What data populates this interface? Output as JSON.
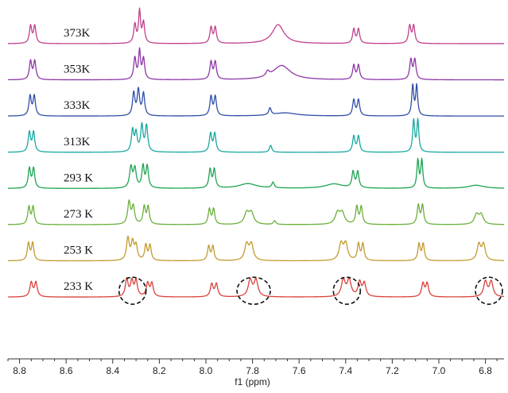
{
  "chart_data": {
    "type": "line",
    "xlabel": "f1 (ppm)",
    "x_axis_reversed": true,
    "xlim": [
      8.85,
      6.72
    ],
    "x_ticks": [
      8.8,
      8.6,
      8.4,
      8.2,
      8.0,
      7.8,
      7.6,
      7.4,
      7.2,
      7.0,
      6.8
    ],
    "x_tick_labels": [
      "8.8",
      "8.6",
      "8.4",
      "8.2",
      "8.0",
      "7.8",
      "7.6",
      "7.4",
      "7.2",
      "7.0",
      "6.8"
    ],
    "grid": false,
    "legend": "none",
    "series": [
      {
        "name": "373K",
        "color": "#c0408c",
        "peaks": [
          {
            "ppm": 8.753,
            "h": 0.55,
            "w": 0.006
          },
          {
            "ppm": 8.735,
            "h": 0.55,
            "w": 0.006
          },
          {
            "ppm": 8.305,
            "h": 0.6,
            "w": 0.006
          },
          {
            "ppm": 8.285,
            "h": 1.0,
            "w": 0.005
          },
          {
            "ppm": 8.268,
            "h": 0.65,
            "w": 0.006
          },
          {
            "ppm": 7.978,
            "h": 0.5,
            "w": 0.006
          },
          {
            "ppm": 7.96,
            "h": 0.5,
            "w": 0.006
          },
          {
            "ppm": 7.69,
            "h": 0.6,
            "w": 0.03
          },
          {
            "ppm": 7.365,
            "h": 0.45,
            "w": 0.006
          },
          {
            "ppm": 7.345,
            "h": 0.45,
            "w": 0.006
          },
          {
            "ppm": 7.125,
            "h": 0.55,
            "w": 0.006
          },
          {
            "ppm": 7.108,
            "h": 0.55,
            "w": 0.006
          }
        ]
      },
      {
        "name": "353K",
        "color": "#8e36a8",
        "peaks": [
          {
            "ppm": 8.753,
            "h": 0.58,
            "w": 0.006
          },
          {
            "ppm": 8.735,
            "h": 0.58,
            "w": 0.006
          },
          {
            "ppm": 8.305,
            "h": 0.68,
            "w": 0.006
          },
          {
            "ppm": 8.285,
            "h": 0.88,
            "w": 0.005
          },
          {
            "ppm": 8.268,
            "h": 0.65,
            "w": 0.006
          },
          {
            "ppm": 7.978,
            "h": 0.55,
            "w": 0.006
          },
          {
            "ppm": 7.96,
            "h": 0.55,
            "w": 0.006
          },
          {
            "ppm": 7.735,
            "h": 0.15,
            "w": 0.008
          },
          {
            "ppm": 7.675,
            "h": 0.45,
            "w": 0.045
          },
          {
            "ppm": 7.365,
            "h": 0.45,
            "w": 0.006
          },
          {
            "ppm": 7.345,
            "h": 0.45,
            "w": 0.006
          },
          {
            "ppm": 7.12,
            "h": 0.62,
            "w": 0.006
          },
          {
            "ppm": 7.103,
            "h": 0.62,
            "w": 0.006
          }
        ]
      },
      {
        "name": "333K",
        "color": "#2f4ea8",
        "peaks": [
          {
            "ppm": 8.755,
            "h": 0.62,
            "w": 0.006
          },
          {
            "ppm": 8.737,
            "h": 0.62,
            "w": 0.006
          },
          {
            "ppm": 8.31,
            "h": 0.72,
            "w": 0.006
          },
          {
            "ppm": 8.29,
            "h": 0.8,
            "w": 0.006
          },
          {
            "ppm": 8.268,
            "h": 0.7,
            "w": 0.006
          },
          {
            "ppm": 7.978,
            "h": 0.6,
            "w": 0.006
          },
          {
            "ppm": 7.96,
            "h": 0.6,
            "w": 0.006
          },
          {
            "ppm": 7.725,
            "h": 0.22,
            "w": 0.006
          },
          {
            "ppm": 7.66,
            "h": 0.1,
            "w": 0.06
          },
          {
            "ppm": 7.365,
            "h": 0.5,
            "w": 0.006
          },
          {
            "ppm": 7.345,
            "h": 0.5,
            "w": 0.006
          },
          {
            "ppm": 7.112,
            "h": 0.95,
            "w": 0.005
          },
          {
            "ppm": 7.095,
            "h": 0.95,
            "w": 0.005
          }
        ]
      },
      {
        "name": "313K",
        "color": "#18a8a0",
        "peaks": [
          {
            "ppm": 8.758,
            "h": 0.62,
            "w": 0.006
          },
          {
            "ppm": 8.74,
            "h": 0.62,
            "w": 0.006
          },
          {
            "ppm": 8.315,
            "h": 0.68,
            "w": 0.006
          },
          {
            "ppm": 8.3,
            "h": 0.58,
            "w": 0.006
          },
          {
            "ppm": 8.275,
            "h": 0.82,
            "w": 0.006
          },
          {
            "ppm": 8.255,
            "h": 0.82,
            "w": 0.006
          },
          {
            "ppm": 7.98,
            "h": 0.58,
            "w": 0.006
          },
          {
            "ppm": 7.962,
            "h": 0.58,
            "w": 0.006
          },
          {
            "ppm": 7.722,
            "h": 0.22,
            "w": 0.006
          },
          {
            "ppm": 7.365,
            "h": 0.5,
            "w": 0.006
          },
          {
            "ppm": 7.345,
            "h": 0.5,
            "w": 0.006
          },
          {
            "ppm": 7.108,
            "h": 1.0,
            "w": 0.005
          },
          {
            "ppm": 7.09,
            "h": 1.0,
            "w": 0.005
          }
        ]
      },
      {
        "name": "293 K",
        "color": "#1fa353",
        "peaks": [
          {
            "ppm": 8.758,
            "h": 0.62,
            "w": 0.006
          },
          {
            "ppm": 8.74,
            "h": 0.62,
            "w": 0.006
          },
          {
            "ppm": 8.322,
            "h": 0.65,
            "w": 0.007
          },
          {
            "ppm": 8.305,
            "h": 0.6,
            "w": 0.007
          },
          {
            "ppm": 8.27,
            "h": 0.68,
            "w": 0.006
          },
          {
            "ppm": 8.252,
            "h": 0.68,
            "w": 0.006
          },
          {
            "ppm": 7.982,
            "h": 0.58,
            "w": 0.006
          },
          {
            "ppm": 7.964,
            "h": 0.58,
            "w": 0.006
          },
          {
            "ppm": 7.82,
            "h": 0.15,
            "w": 0.045
          },
          {
            "ppm": 7.712,
            "h": 0.18,
            "w": 0.006
          },
          {
            "ppm": 7.45,
            "h": 0.14,
            "w": 0.045
          },
          {
            "ppm": 7.368,
            "h": 0.5,
            "w": 0.006
          },
          {
            "ppm": 7.348,
            "h": 0.5,
            "w": 0.006
          },
          {
            "ppm": 7.09,
            "h": 0.88,
            "w": 0.005
          },
          {
            "ppm": 7.073,
            "h": 0.88,
            "w": 0.005
          },
          {
            "ppm": 6.84,
            "h": 0.1,
            "w": 0.04
          }
        ]
      },
      {
        "name": "273 K",
        "color": "#6aaf3a",
        "peaks": [
          {
            "ppm": 8.76,
            "h": 0.55,
            "w": 0.006
          },
          {
            "ppm": 8.742,
            "h": 0.55,
            "w": 0.006
          },
          {
            "ppm": 8.33,
            "h": 0.7,
            "w": 0.007
          },
          {
            "ppm": 8.312,
            "h": 0.55,
            "w": 0.007
          },
          {
            "ppm": 8.265,
            "h": 0.55,
            "w": 0.006
          },
          {
            "ppm": 8.248,
            "h": 0.55,
            "w": 0.006
          },
          {
            "ppm": 7.985,
            "h": 0.48,
            "w": 0.006
          },
          {
            "ppm": 7.967,
            "h": 0.48,
            "w": 0.006
          },
          {
            "ppm": 7.825,
            "h": 0.35,
            "w": 0.012
          },
          {
            "ppm": 7.805,
            "h": 0.35,
            "w": 0.012
          },
          {
            "ppm": 7.705,
            "h": 0.12,
            "w": 0.006
          },
          {
            "ppm": 7.435,
            "h": 0.35,
            "w": 0.012
          },
          {
            "ppm": 7.415,
            "h": 0.35,
            "w": 0.012
          },
          {
            "ppm": 7.352,
            "h": 0.55,
            "w": 0.006
          },
          {
            "ppm": 7.333,
            "h": 0.55,
            "w": 0.006
          },
          {
            "ppm": 7.088,
            "h": 0.6,
            "w": 0.006
          },
          {
            "ppm": 7.07,
            "h": 0.6,
            "w": 0.006
          },
          {
            "ppm": 6.838,
            "h": 0.3,
            "w": 0.011
          },
          {
            "ppm": 6.818,
            "h": 0.3,
            "w": 0.011
          }
        ]
      },
      {
        "name": "253 K",
        "color": "#c29a2e",
        "peaks": [
          {
            "ppm": 8.762,
            "h": 0.55,
            "w": 0.006
          },
          {
            "ppm": 8.744,
            "h": 0.55,
            "w": 0.006
          },
          {
            "ppm": 8.335,
            "h": 0.7,
            "w": 0.007
          },
          {
            "ppm": 8.315,
            "h": 0.55,
            "w": 0.007
          },
          {
            "ppm": 8.3,
            "h": 0.45,
            "w": 0.007
          },
          {
            "ppm": 8.258,
            "h": 0.48,
            "w": 0.006
          },
          {
            "ppm": 8.24,
            "h": 0.48,
            "w": 0.006
          },
          {
            "ppm": 7.988,
            "h": 0.45,
            "w": 0.006
          },
          {
            "ppm": 7.97,
            "h": 0.45,
            "w": 0.006
          },
          {
            "ppm": 7.825,
            "h": 0.5,
            "w": 0.01
          },
          {
            "ppm": 7.805,
            "h": 0.5,
            "w": 0.01
          },
          {
            "ppm": 7.42,
            "h": 0.52,
            "w": 0.01
          },
          {
            "ppm": 7.4,
            "h": 0.52,
            "w": 0.01
          },
          {
            "ppm": 7.345,
            "h": 0.52,
            "w": 0.006
          },
          {
            "ppm": 7.326,
            "h": 0.52,
            "w": 0.006
          },
          {
            "ppm": 7.085,
            "h": 0.52,
            "w": 0.006
          },
          {
            "ppm": 7.067,
            "h": 0.52,
            "w": 0.006
          },
          {
            "ppm": 6.828,
            "h": 0.5,
            "w": 0.009
          },
          {
            "ppm": 6.808,
            "h": 0.5,
            "w": 0.009
          }
        ]
      },
      {
        "name": "233 K",
        "color": "#d8413b",
        "peaks": [
          {
            "ppm": 8.75,
            "h": 0.45,
            "w": 0.007
          },
          {
            "ppm": 8.73,
            "h": 0.45,
            "w": 0.007
          },
          {
            "ppm": 8.34,
            "h": 0.55,
            "w": 0.007
          },
          {
            "ppm": 8.318,
            "h": 0.48,
            "w": 0.007
          },
          {
            "ppm": 8.3,
            "h": 0.5,
            "w": 0.007
          },
          {
            "ppm": 8.25,
            "h": 0.42,
            "w": 0.007
          },
          {
            "ppm": 8.232,
            "h": 0.42,
            "w": 0.007
          },
          {
            "ppm": 7.975,
            "h": 0.4,
            "w": 0.007
          },
          {
            "ppm": 7.955,
            "h": 0.4,
            "w": 0.007
          },
          {
            "ppm": 7.81,
            "h": 0.52,
            "w": 0.01
          },
          {
            "ppm": 7.785,
            "h": 0.52,
            "w": 0.01
          },
          {
            "ppm": 7.41,
            "h": 0.52,
            "w": 0.01
          },
          {
            "ppm": 7.385,
            "h": 0.52,
            "w": 0.01
          },
          {
            "ppm": 7.34,
            "h": 0.45,
            "w": 0.008
          },
          {
            "ppm": 7.32,
            "h": 0.42,
            "w": 0.008
          },
          {
            "ppm": 7.068,
            "h": 0.42,
            "w": 0.007
          },
          {
            "ppm": 7.05,
            "h": 0.42,
            "w": 0.007
          },
          {
            "ppm": 6.8,
            "h": 0.48,
            "w": 0.009
          },
          {
            "ppm": 6.775,
            "h": 0.48,
            "w": 0.009
          }
        ]
      }
    ],
    "annotations": [
      {
        "type": "dashed-circle",
        "series": "233 K",
        "ppm": 8.315
      },
      {
        "type": "dashed-circle",
        "series": "233 K",
        "ppm": 7.795
      },
      {
        "type": "dashed-circle",
        "series": "233 K",
        "ppm": 7.395
      },
      {
        "type": "dashed-circle",
        "series": "233 K",
        "ppm": 6.785
      }
    ]
  }
}
